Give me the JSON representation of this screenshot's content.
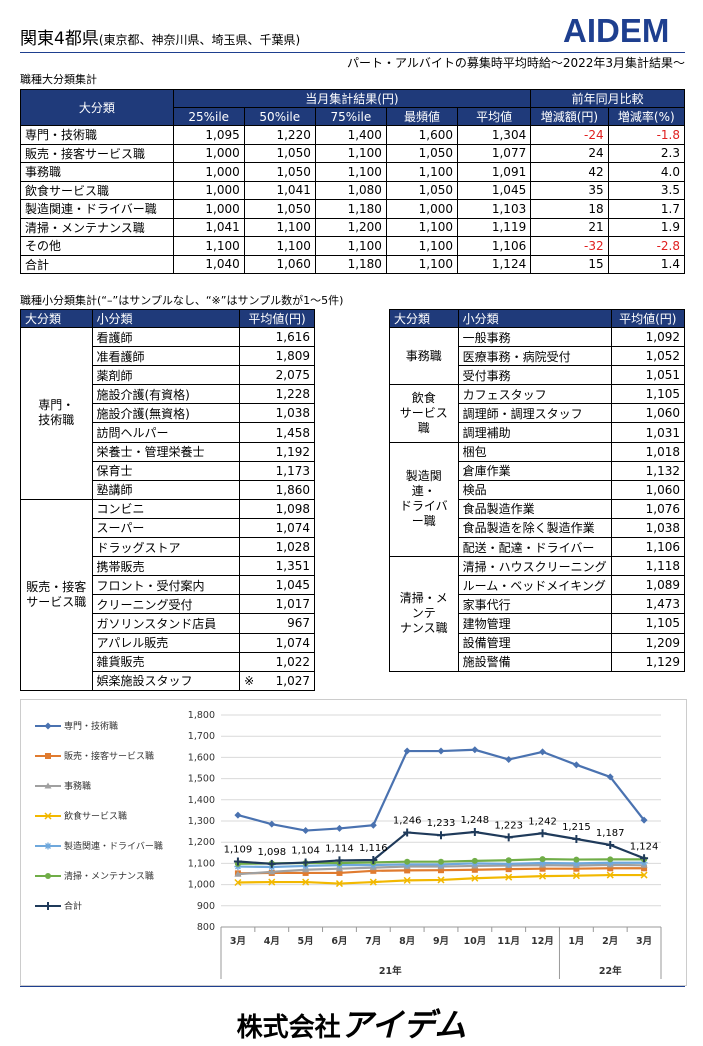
{
  "header": {
    "title": "関東4都県",
    "title_sub": "(東京都、神奈川県、埼玉県、千葉県)",
    "logo": "AIDEM",
    "subtitle": "パート・アルバイトの募集時平均時給～2022年3月集計結果～",
    "brand_color": "#1e3f8f",
    "accent_color": "#d0102a"
  },
  "section1": {
    "heading": "職種大分類集計",
    "h_category": "大分類",
    "h_current": "当月集計結果(円)",
    "h_yoy": "前年同月比較",
    "cols": [
      "25%ile",
      "50%ile",
      "75%ile",
      "最頻値",
      "平均値",
      "増減額(円)",
      "増減率(%)"
    ],
    "rows": [
      {
        "name": "専門・技術職",
        "p25": "1,095",
        "p50": "1,220",
        "p75": "1,400",
        "mode": "1,600",
        "avg": "1,304",
        "diff": "-24",
        "rate": "-1.8",
        "neg": true
      },
      {
        "name": "販売・接客サービス職",
        "p25": "1,000",
        "p50": "1,050",
        "p75": "1,100",
        "mode": "1,050",
        "avg": "1,077",
        "diff": "24",
        "rate": "2.3",
        "neg": false
      },
      {
        "name": "事務職",
        "p25": "1,000",
        "p50": "1,050",
        "p75": "1,100",
        "mode": "1,100",
        "avg": "1,091",
        "diff": "42",
        "rate": "4.0",
        "neg": false
      },
      {
        "name": "飲食サービス職",
        "p25": "1,000",
        "p50": "1,041",
        "p75": "1,080",
        "mode": "1,050",
        "avg": "1,045",
        "diff": "35",
        "rate": "3.5",
        "neg": false
      },
      {
        "name": "製造関連・ドライバー職",
        "p25": "1,000",
        "p50": "1,050",
        "p75": "1,180",
        "mode": "1,000",
        "avg": "1,103",
        "diff": "18",
        "rate": "1.7",
        "neg": false
      },
      {
        "name": "清掃・メンテナンス職",
        "p25": "1,041",
        "p50": "1,100",
        "p75": "1,200",
        "mode": "1,100",
        "avg": "1,119",
        "diff": "21",
        "rate": "1.9",
        "neg": false
      },
      {
        "name": "その他",
        "p25": "1,100",
        "p50": "1,100",
        "p75": "1,100",
        "mode": "1,100",
        "avg": "1,106",
        "diff": "-32",
        "rate": "-2.8",
        "neg": true
      },
      {
        "name": "合計",
        "p25": "1,040",
        "p50": "1,060",
        "p75": "1,180",
        "mode": "1,100",
        "avg": "1,124",
        "diff": "15",
        "rate": "1.4",
        "neg": false
      }
    ]
  },
  "section2": {
    "heading": "職種小分類集計(“–”はサンプルなし、“※”はサンプル数が1～5件)",
    "h_major": "大分類",
    "h_minor": "小分類",
    "h_avg": "平均値(円)",
    "left": [
      {
        "category": "専門・\n技術職",
        "items": [
          {
            "name": "看護師",
            "mark": "",
            "value": "1,616"
          },
          {
            "name": "准看護師",
            "mark": "",
            "value": "1,809"
          },
          {
            "name": "薬剤師",
            "mark": "",
            "value": "2,075"
          },
          {
            "name": "施設介護(有資格)",
            "mark": "",
            "value": "1,228"
          },
          {
            "name": "施設介護(無資格)",
            "mark": "",
            "value": "1,038"
          },
          {
            "name": "訪問ヘルパー",
            "mark": "",
            "value": "1,458"
          },
          {
            "name": "栄養士・管理栄養士",
            "mark": "",
            "value": "1,192"
          },
          {
            "name": "保育士",
            "mark": "",
            "value": "1,173"
          },
          {
            "name": "塾講師",
            "mark": "",
            "value": "1,860"
          }
        ]
      },
      {
        "category": "販売・接客\nサービス職",
        "items": [
          {
            "name": "コンビニ",
            "mark": "",
            "value": "1,098"
          },
          {
            "name": "スーパー",
            "mark": "",
            "value": "1,074"
          },
          {
            "name": "ドラッグストア",
            "mark": "",
            "value": "1,028"
          },
          {
            "name": "携帯販売",
            "mark": "",
            "value": "1,351"
          },
          {
            "name": "フロント・受付案内",
            "mark": "",
            "value": "1,045"
          },
          {
            "name": "クリーニング受付",
            "mark": "",
            "value": "1,017"
          },
          {
            "name": "ガソリンスタンド店員",
            "mark": "",
            "value": "967"
          },
          {
            "name": "アパレル販売",
            "mark": "",
            "value": "1,074"
          },
          {
            "name": "雑貨販売",
            "mark": "",
            "value": "1,022"
          },
          {
            "name": "娯楽施設スタッフ",
            "mark": "※",
            "value": "1,027"
          }
        ]
      }
    ],
    "right": [
      {
        "category": "事務職",
        "items": [
          {
            "name": "一般事務",
            "mark": "",
            "value": "1,092"
          },
          {
            "name": "医療事務・病院受付",
            "mark": "",
            "value": "1,052"
          },
          {
            "name": "受付事務",
            "mark": "",
            "value": "1,051"
          }
        ]
      },
      {
        "category": "飲食\nサービス職",
        "items": [
          {
            "name": "カフェスタッフ",
            "mark": "",
            "value": "1,105"
          },
          {
            "name": "調理師・調理スタッフ",
            "mark": "",
            "value": "1,060"
          },
          {
            "name": "調理補助",
            "mark": "",
            "value": "1,031"
          }
        ]
      },
      {
        "category": "製造関連・\nドライバー職",
        "items": [
          {
            "name": "梱包",
            "mark": "",
            "value": "1,018"
          },
          {
            "name": "倉庫作業",
            "mark": "",
            "value": "1,132"
          },
          {
            "name": "検品",
            "mark": "",
            "value": "1,060"
          },
          {
            "name": "食品製造作業",
            "mark": "",
            "value": "1,076"
          },
          {
            "name": "食品製造を除く製造作業",
            "mark": "",
            "value": "1,038"
          },
          {
            "name": "配送・配達・ドライバー",
            "mark": "",
            "value": "1,106"
          }
        ]
      },
      {
        "category": "清掃・メンテ\nナンス職",
        "items": [
          {
            "name": "清掃・ハウスクリーニング",
            "mark": "",
            "value": "1,118"
          },
          {
            "name": "ルーム・ベッドメイキング",
            "mark": "",
            "value": "1,089"
          },
          {
            "name": "家事代行",
            "mark": "",
            "value": "1,473"
          },
          {
            "name": "建物管理",
            "mark": "",
            "value": "1,105"
          },
          {
            "name": "設備管理",
            "mark": "",
            "value": "1,209"
          },
          {
            "name": "施設警備",
            "mark": "",
            "value": "1,129"
          }
        ]
      }
    ]
  },
  "chart_data": {
    "type": "line",
    "categories": [
      "3月",
      "4月",
      "5月",
      "6月",
      "7月",
      "8月",
      "9月",
      "10月",
      "11月",
      "12月",
      "1月",
      "2月",
      "3月"
    ],
    "year_groups": [
      {
        "label": "21年",
        "from": 0,
        "to": 9
      },
      {
        "label": "22年",
        "from": 10,
        "to": 12
      }
    ],
    "ylim": [
      800,
      1800
    ],
    "yticks": [
      800,
      900,
      1000,
      1100,
      1200,
      1300,
      1400,
      1500,
      1600,
      1700,
      1800
    ],
    "ytick_labels": [
      "800",
      "900",
      "1,000",
      "1,100",
      "1,200",
      "1,300",
      "1,400",
      "1,500",
      "1,600",
      "1,700",
      "1,800"
    ],
    "series": [
      {
        "name": "専門・技術職",
        "color": "#4a72b0",
        "marker": "diamond",
        "values": [
          1328,
          1285,
          1255,
          1265,
          1280,
          1630,
          1630,
          1636,
          1590,
          1626,
          1565,
          1508,
          1304
        ]
      },
      {
        "name": "販売・接客サービス職",
        "color": "#e07b2f",
        "marker": "square",
        "values": [
          1053,
          1055,
          1055,
          1055,
          1065,
          1067,
          1068,
          1070,
          1073,
          1075,
          1075,
          1077,
          1077
        ]
      },
      {
        "name": "事務職",
        "color": "#a0a0a0",
        "marker": "triangle",
        "values": [
          1049,
          1060,
          1070,
          1075,
          1080,
          1085,
          1085,
          1088,
          1090,
          1092,
          1090,
          1093,
          1091
        ]
      },
      {
        "name": "飲食サービス職",
        "color": "#f2b800",
        "marker": "x",
        "values": [
          1010,
          1012,
          1012,
          1005,
          1012,
          1020,
          1022,
          1030,
          1035,
          1040,
          1042,
          1045,
          1045
        ]
      },
      {
        "name": "製造関連・ドライバー職",
        "color": "#6fa8dc",
        "marker": "star",
        "values": [
          1085,
          1083,
          1088,
          1092,
          1092,
          1095,
          1095,
          1100,
          1098,
          1102,
          1100,
          1103,
          1103
        ]
      },
      {
        "name": "清掃・メンテナンス職",
        "color": "#70ad47",
        "marker": "circle",
        "values": [
          1098,
          1100,
          1102,
          1102,
          1105,
          1108,
          1108,
          1112,
          1115,
          1120,
          1118,
          1119,
          1119
        ]
      },
      {
        "name": "合計",
        "color": "#1f3a5a",
        "marker": "plus",
        "values": [
          1109,
          1098,
          1104,
          1114,
          1116,
          1246,
          1233,
          1248,
          1223,
          1242,
          1215,
          1187,
          1124
        ],
        "labels": [
          "1,109",
          "1,098",
          "1,104",
          "1,114",
          "1,116",
          "1,246",
          "1,233",
          "1,248",
          "1,223",
          "1,242",
          "1,215",
          "1,187",
          "1,124"
        ]
      }
    ]
  },
  "footer": {
    "company_prefix": "株式会社",
    "company_name": "アイデム"
  }
}
